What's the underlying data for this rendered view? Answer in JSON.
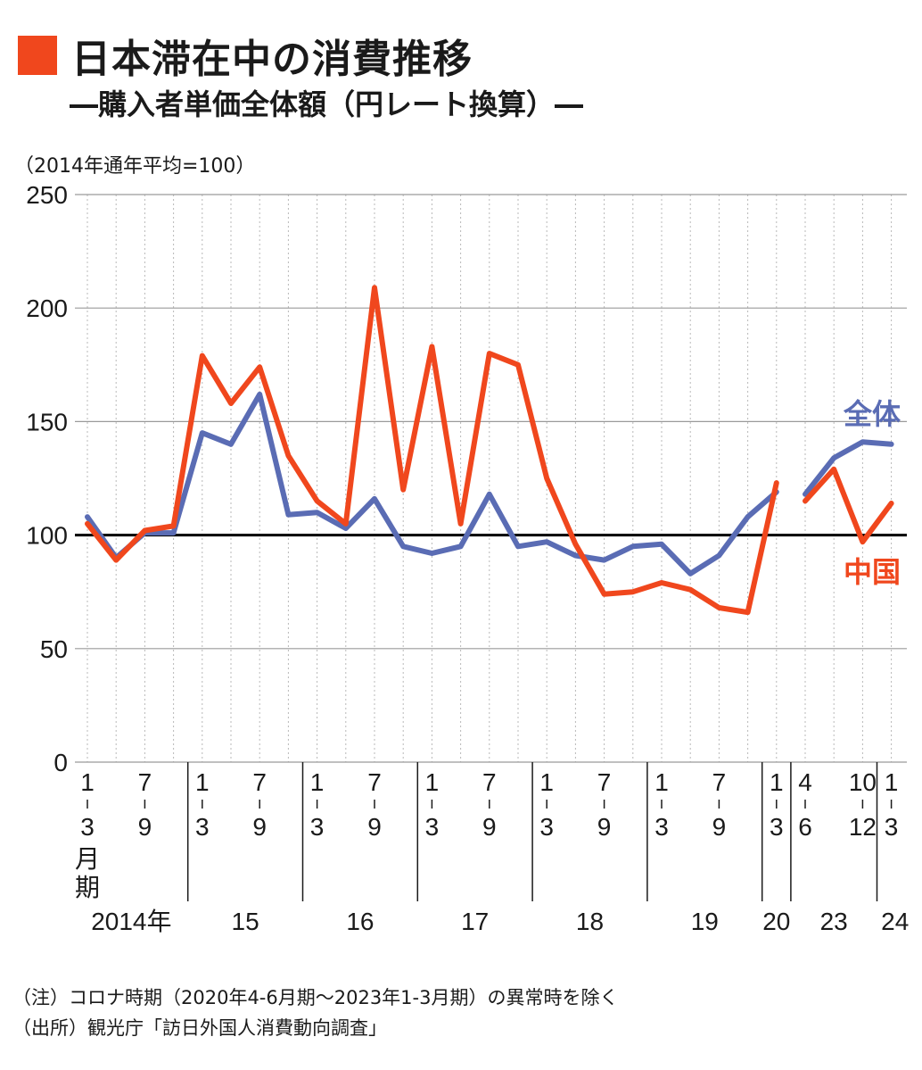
{
  "title": "日本滞在中の消費推移",
  "subtitle": "―購入者単価全体額（円レート換算）―",
  "unit_label": "（2014年通年平均=100）",
  "colors": {
    "accent": "#f0471d",
    "china": "#f0471d",
    "total": "#5a6cb4",
    "baseline": "#000000"
  },
  "chart_data": {
    "type": "line",
    "ylim": [
      0,
      250
    ],
    "yticks": [
      0,
      50,
      100,
      150,
      200,
      250
    ],
    "baseline": 100,
    "quarter_labels": [
      [
        "1",
        "3"
      ],
      [
        "",
        ""
      ],
      [
        "7",
        "9"
      ],
      [
        "",
        ""
      ],
      [
        "1",
        "3"
      ],
      [
        "",
        ""
      ],
      [
        "7",
        "9"
      ],
      [
        "",
        ""
      ],
      [
        "1",
        "3"
      ],
      [
        "",
        ""
      ],
      [
        "7",
        "9"
      ],
      [
        "",
        ""
      ],
      [
        "1",
        "3"
      ],
      [
        "",
        ""
      ],
      [
        "7",
        "9"
      ],
      [
        "",
        ""
      ],
      [
        "1",
        "3"
      ],
      [
        "",
        ""
      ],
      [
        "7",
        "9"
      ],
      [
        "",
        ""
      ],
      [
        "1",
        "3"
      ],
      [
        "",
        ""
      ],
      [
        "7",
        "9"
      ],
      [
        "",
        ""
      ],
      [
        "1",
        "3"
      ],
      [
        "4",
        "6"
      ],
      [
        "",
        ""
      ],
      [
        "10",
        "12"
      ],
      [
        "1",
        "3"
      ]
    ],
    "first_period_suffix": [
      "月",
      "期"
    ],
    "year_labels": [
      "2014年",
      "15",
      "16",
      "17",
      "18",
      "19",
      "20",
      "23",
      "24"
    ],
    "year_dividers_after": [
      3,
      7,
      11,
      15,
      19,
      23,
      24,
      27
    ],
    "series": [
      {
        "name": "全体",
        "color_key": "total",
        "segments": [
          [
            108,
            90,
            101,
            101,
            145,
            140,
            162,
            109,
            110,
            103,
            116,
            95,
            92,
            95,
            118,
            95,
            97,
            91,
            89,
            95,
            96,
            83,
            91,
            108,
            119
          ],
          [
            118,
            134,
            141,
            140
          ]
        ]
      },
      {
        "name": "中国",
        "color_key": "china",
        "segments": [
          [
            105,
            89,
            102,
            104,
            179,
            158,
            174,
            135,
            115,
            105,
            209,
            120,
            183,
            105,
            180,
            175,
            125,
            96,
            74,
            75,
            79,
            76,
            68,
            66,
            123
          ],
          [
            115,
            129,
            97,
            114
          ]
        ]
      }
    ]
  },
  "notes": [
    "（注）コロナ時期（2020年4-6月期〜2023年1-3月期）の異常時を除く",
    "（出所）観光庁「訪日外国人消費動向調査」"
  ]
}
